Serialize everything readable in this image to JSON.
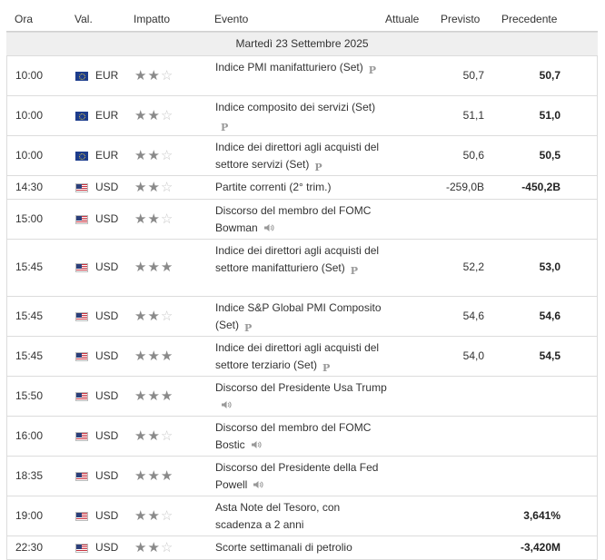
{
  "header": {
    "ora": "Ora",
    "val": "Val.",
    "impatto": "Impatto",
    "evento": "Evento",
    "attuale": "Attuale",
    "previsto": "Previsto",
    "precedente": "Precedente"
  },
  "day_label": "Martedì 23 Settembre 2025",
  "icons": {
    "report": "P",
    "speech": "speaker-icon"
  },
  "rows": [
    {
      "time": "10:00",
      "flag": "eu-flag",
      "currency": "EUR",
      "impact": 2,
      "event": "Indice PMI manifatturiero (Set)",
      "badge": "p",
      "actual": "",
      "forecast": "50,7",
      "previous": "50,7"
    },
    {
      "time": "10:00",
      "flag": "eu-flag",
      "currency": "EUR",
      "impact": 2,
      "event": "Indice composito dei servizi (Set)",
      "badge": "p",
      "actual": "",
      "forecast": "51,1",
      "previous": "51,0"
    },
    {
      "time": "10:00",
      "flag": "eu-flag",
      "currency": "EUR",
      "impact": 2,
      "event": "Indice dei direttori agli acquisti del settore servizi (Set)",
      "badge": "p",
      "actual": "",
      "forecast": "50,6",
      "previous": "50,5"
    },
    {
      "time": "14:30",
      "flag": "us-flag",
      "currency": "USD",
      "impact": 2,
      "event": "Partite correnti (2° trim.)",
      "badge": "",
      "actual": "",
      "forecast": "-259,0B",
      "previous": "-450,2B"
    },
    {
      "time": "15:00",
      "flag": "us-flag",
      "currency": "USD",
      "impact": 2,
      "event": "Discorso del membro del FOMC Bowman",
      "badge": "speech",
      "actual": "",
      "forecast": "",
      "previous": ""
    },
    {
      "time": "15:45",
      "flag": "us-flag",
      "currency": "USD",
      "impact": 3,
      "event": "Indice dei direttori agli acquisti del settore manifatturiero (Set)",
      "badge": "p",
      "actual": "",
      "forecast": "52,2",
      "previous": "53,0"
    },
    {
      "time": "15:45",
      "flag": "us-flag",
      "currency": "USD",
      "impact": 2,
      "event": "Indice S&P Global PMI Composito (Set)",
      "badge": "p",
      "actual": "",
      "forecast": "54,6",
      "previous": "54,6"
    },
    {
      "time": "15:45",
      "flag": "us-flag",
      "currency": "USD",
      "impact": 3,
      "event": "Indice dei direttori agli acquisti del settore terziario (Set)",
      "badge": "p",
      "actual": "",
      "forecast": "54,0",
      "previous": "54,5"
    },
    {
      "time": "15:50",
      "flag": "us-flag",
      "currency": "USD",
      "impact": 3,
      "event": "Discorso del Presidente Usa Trump",
      "badge": "speech",
      "actual": "",
      "forecast": "",
      "previous": ""
    },
    {
      "time": "16:00",
      "flag": "us-flag",
      "currency": "USD",
      "impact": 2,
      "event": "Discorso del membro del FOMC Bostic",
      "badge": "speech",
      "actual": "",
      "forecast": "",
      "previous": ""
    },
    {
      "time": "18:35",
      "flag": "us-flag",
      "currency": "USD",
      "impact": 3,
      "event": "Discorso del Presidente della Fed Powell",
      "badge": "speech",
      "actual": "",
      "forecast": "",
      "previous": ""
    },
    {
      "time": "19:00",
      "flag": "us-flag",
      "currency": "USD",
      "impact": 2,
      "event": "Asta Note del Tesoro, con scadenza a 2 anni",
      "badge": "",
      "actual": "",
      "forecast": "",
      "previous": "3,641%"
    },
    {
      "time": "22:30",
      "flag": "us-flag",
      "currency": "USD",
      "impact": 2,
      "event": "Scorte settimanali di petrolio",
      "badge": "",
      "actual": "",
      "forecast": "",
      "previous": "-3,420M"
    }
  ]
}
